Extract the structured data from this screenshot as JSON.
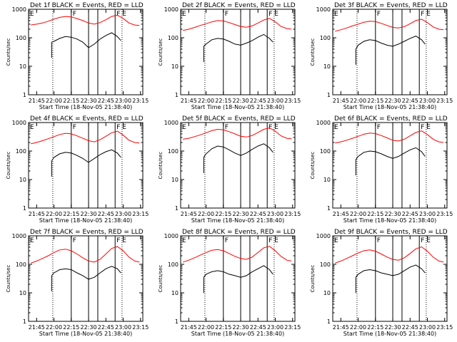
{
  "chart_data": {
    "type": "line",
    "layout": "3x3 grid",
    "xlabel": "Start Time (18-Nov-05 21:38:40)",
    "ylabel": "Counts/sec",
    "x_ticks": [
      "21:45",
      "22:00",
      "22:15",
      "22:30",
      "22:45",
      "23:00",
      "23:15"
    ],
    "x_range": [
      "21:38",
      "23:17"
    ],
    "y_scale": "log",
    "y_range": [
      1,
      1000
    ],
    "y_ticks": [
      "1",
      "10",
      "100",
      "1000"
    ],
    "colors": {
      "events": "#000000",
      "lld": "#ff0000",
      "axes": "#000000",
      "background": "#ffffff"
    },
    "markers": {
      "labels": [
        "F",
        "F",
        "E"
      ],
      "solid_times": [
        "22:15",
        "22:30",
        "22:38",
        "22:53"
      ],
      "dotted_times": [
        "21:59",
        "22:59"
      ]
    },
    "panels": [
      {
        "title": "Det 1f BLACK = Events, RED = LLD",
        "series": [
          {
            "name": "Events",
            "color": "#000000",
            "x": [
              "21:58",
              "22:00",
              "22:05",
              "22:10",
              "22:15",
              "22:20",
              "22:25",
              "22:30",
              "22:35",
              "22:40",
              "22:45",
              "22:50",
              "22:55",
              "22:58"
            ],
            "values": [
              70,
              75,
              95,
              110,
              105,
              90,
              70,
              45,
              60,
              90,
              120,
              150,
              110,
              80
            ]
          },
          {
            "name": "LLD",
            "color": "#ff0000",
            "x": [
              "21:40",
              "21:45",
              "21:50",
              "21:55",
              "22:00",
              "22:05",
              "22:10",
              "22:15",
              "22:20",
              "22:25",
              "22:30",
              "22:35",
              "22:40",
              "22:45",
              "22:50",
              "22:55",
              "23:00",
              "23:05",
              "23:10",
              "23:14"
            ],
            "values": [
              280,
              300,
              330,
              380,
              450,
              520,
              560,
              540,
              470,
              400,
              330,
              300,
              340,
              430,
              560,
              620,
              480,
              330,
              280,
              270
            ]
          }
        ]
      },
      {
        "title": "Det 2f BLACK = Events, RED = LLD",
        "series": [
          {
            "name": "Events",
            "color": "#000000",
            "x": [
              "21:58",
              "22:00",
              "22:05",
              "22:10",
              "22:15",
              "22:20",
              "22:25",
              "22:30",
              "22:35",
              "22:40",
              "22:45",
              "22:50",
              "22:55",
              "22:58"
            ],
            "values": [
              50,
              60,
              85,
              95,
              90,
              75,
              60,
              55,
              65,
              80,
              105,
              130,
              95,
              70
            ]
          },
          {
            "name": "LLD",
            "color": "#ff0000",
            "x": [
              "21:40",
              "21:45",
              "21:50",
              "21:55",
              "22:00",
              "22:05",
              "22:10",
              "22:15",
              "22:20",
              "22:25",
              "22:30",
              "22:35",
              "22:40",
              "22:45",
              "22:50",
              "22:55",
              "23:00",
              "23:05",
              "23:10",
              "23:14"
            ],
            "values": [
              180,
              200,
              230,
              270,
              310,
              360,
              400,
              390,
              340,
              290,
              250,
              235,
              260,
              330,
              420,
              480,
              360,
              250,
              210,
              200
            ]
          }
        ]
      },
      {
        "title": "Det 3f BLACK = Events, RED = LLD",
        "series": [
          {
            "name": "Events",
            "color": "#000000",
            "x": [
              "21:58",
              "22:00",
              "22:05",
              "22:10",
              "22:15",
              "22:20",
              "22:25",
              "22:30",
              "22:35",
              "22:40",
              "22:45",
              "22:50",
              "22:55",
              "22:58"
            ],
            "values": [
              40,
              55,
              75,
              85,
              80,
              65,
              55,
              50,
              60,
              75,
              95,
              115,
              85,
              60
            ]
          },
          {
            "name": "LLD",
            "color": "#ff0000",
            "x": [
              "21:40",
              "21:45",
              "21:50",
              "21:55",
              "22:00",
              "22:05",
              "22:10",
              "22:15",
              "22:20",
              "22:25",
              "22:30",
              "22:35",
              "22:40",
              "22:45",
              "22:50",
              "22:55",
              "23:00",
              "23:05",
              "23:10",
              "23:14"
            ],
            "values": [
              170,
              190,
              220,
              260,
              300,
              350,
              380,
              370,
              320,
              270,
              230,
              220,
              245,
              310,
              400,
              450,
              340,
              240,
              200,
              190
            ]
          }
        ]
      },
      {
        "title": "Det 4f BLACK = Events, RED = LLD",
        "series": [
          {
            "name": "Events",
            "color": "#000000",
            "x": [
              "21:58",
              "22:00",
              "22:05",
              "22:10",
              "22:15",
              "22:20",
              "22:25",
              "22:30",
              "22:35",
              "22:40",
              "22:45",
              "22:50",
              "22:55",
              "22:58"
            ],
            "values": [
              45,
              60,
              80,
              90,
              85,
              70,
              55,
              40,
              55,
              75,
              95,
              110,
              85,
              60
            ]
          },
          {
            "name": "LLD",
            "color": "#ff0000",
            "x": [
              "21:40",
              "21:45",
              "21:50",
              "21:55",
              "22:00",
              "22:05",
              "22:10",
              "22:15",
              "22:20",
              "22:25",
              "22:30",
              "22:35",
              "22:40",
              "22:45",
              "22:50",
              "22:55",
              "23:00",
              "23:05",
              "23:10",
              "23:14"
            ],
            "values": [
              180,
              200,
              230,
              270,
              320,
              380,
              420,
              400,
              340,
              280,
              230,
              210,
              250,
              330,
              440,
              500,
              360,
              240,
              200,
              190
            ]
          }
        ]
      },
      {
        "title": "Det 5f BLACK = Events, RED = LLD",
        "series": [
          {
            "name": "Events",
            "color": "#000000",
            "x": [
              "21:58",
              "22:00",
              "22:05",
              "22:10",
              "22:15",
              "22:20",
              "22:25",
              "22:30",
              "22:35",
              "22:40",
              "22:45",
              "22:50",
              "22:55",
              "22:58"
            ],
            "values": [
              60,
              80,
              120,
              150,
              140,
              110,
              85,
              70,
              85,
              115,
              150,
              180,
              130,
              90
            ]
          },
          {
            "name": "LLD",
            "color": "#ff0000",
            "x": [
              "21:40",
              "21:45",
              "21:50",
              "21:55",
              "22:00",
              "22:05",
              "22:10",
              "22:15",
              "22:20",
              "22:25",
              "22:30",
              "22:35",
              "22:40",
              "22:45",
              "22:50",
              "22:55",
              "23:00",
              "23:05",
              "23:10",
              "23:14"
            ],
            "values": [
              260,
              280,
              320,
              370,
              440,
              520,
              580,
              560,
              480,
              400,
              330,
              310,
              350,
              450,
              580,
              650,
              500,
              340,
              280,
              270
            ]
          }
        ]
      },
      {
        "title": "Det 6f BLACK = Events, RED = LLD",
        "series": [
          {
            "name": "Events",
            "color": "#000000",
            "x": [
              "21:58",
              "22:00",
              "22:05",
              "22:10",
              "22:15",
              "22:20",
              "22:25",
              "22:30",
              "22:35",
              "22:40",
              "22:45",
              "22:50",
              "22:55",
              "22:58"
            ],
            "values": [
              50,
              65,
              90,
              100,
              95,
              80,
              65,
              55,
              65,
              85,
              110,
              130,
              95,
              65
            ]
          },
          {
            "name": "LLD",
            "color": "#ff0000",
            "x": [
              "21:40",
              "21:45",
              "21:50",
              "21:55",
              "22:00",
              "22:05",
              "22:10",
              "22:15",
              "22:20",
              "22:25",
              "22:30",
              "22:35",
              "22:40",
              "22:45",
              "22:50",
              "22:55",
              "23:00",
              "23:05",
              "23:10",
              "23:14"
            ],
            "values": [
              190,
              210,
              240,
              280,
              330,
              390,
              430,
              410,
              350,
              290,
              240,
              225,
              260,
              340,
              450,
              510,
              380,
              260,
              210,
              200
            ]
          }
        ]
      },
      {
        "title": "Det 7f BLACK = Events, RED = LLD",
        "series": [
          {
            "name": "Events",
            "color": "#000000",
            "x": [
              "21:58",
              "22:00",
              "22:05",
              "22:10",
              "22:15",
              "22:20",
              "22:25",
              "22:30",
              "22:35",
              "22:40",
              "22:45",
              "22:50",
              "22:55",
              "22:58"
            ],
            "values": [
              40,
              50,
              65,
              70,
              65,
              50,
              40,
              30,
              35,
              50,
              70,
              85,
              70,
              50
            ]
          },
          {
            "name": "LLD",
            "color": "#ff0000",
            "x": [
              "21:40",
              "21:45",
              "21:50",
              "21:55",
              "22:00",
              "22:05",
              "22:10",
              "22:15",
              "22:20",
              "22:25",
              "22:30",
              "22:35",
              "22:40",
              "22:45",
              "22:50",
              "22:55",
              "23:00",
              "23:05",
              "23:10",
              "23:14"
            ],
            "values": [
              110,
              130,
              160,
              200,
              260,
              320,
              340,
              300,
              230,
              170,
              130,
              120,
              150,
              230,
              360,
              420,
              300,
              180,
              130,
              120
            ]
          }
        ]
      },
      {
        "title": "Det 8f BLACK = Events, RED = LLD",
        "series": [
          {
            "name": "Events",
            "color": "#000000",
            "x": [
              "21:58",
              "22:00",
              "22:05",
              "22:10",
              "22:15",
              "22:20",
              "22:25",
              "22:30",
              "22:35",
              "22:40",
              "22:45",
              "22:50",
              "22:55",
              "22:58"
            ],
            "values": [
              35,
              45,
              55,
              60,
              55,
              45,
              40,
              35,
              40,
              55,
              70,
              90,
              65,
              45
            ]
          },
          {
            "name": "LLD",
            "color": "#ff0000",
            "x": [
              "21:40",
              "21:45",
              "21:50",
              "21:55",
              "22:00",
              "22:05",
              "22:10",
              "22:15",
              "22:20",
              "22:25",
              "22:30",
              "22:35",
              "22:40",
              "22:45",
              "22:50",
              "22:55",
              "23:00",
              "23:05",
              "23:10",
              "23:14"
            ],
            "values": [
              120,
              140,
              170,
              210,
              260,
              310,
              330,
              300,
              240,
              190,
              160,
              150,
              180,
              260,
              380,
              430,
              300,
              190,
              140,
              130
            ]
          }
        ]
      },
      {
        "title": "Det 9f BLACK = Events, RED = LLD",
        "series": [
          {
            "name": "Events",
            "color": "#000000",
            "x": [
              "21:58",
              "22:00",
              "22:05",
              "22:10",
              "22:15",
              "22:20",
              "22:25",
              "22:30",
              "22:35",
              "22:40",
              "22:45",
              "22:50",
              "22:55",
              "22:58"
            ],
            "values": [
              35,
              45,
              60,
              65,
              60,
              50,
              45,
              40,
              45,
              60,
              80,
              95,
              70,
              50
            ]
          },
          {
            "name": "LLD",
            "color": "#ff0000",
            "x": [
              "21:40",
              "21:45",
              "21:50",
              "21:55",
              "22:00",
              "22:05",
              "22:10",
              "22:15",
              "22:20",
              "22:25",
              "22:30",
              "22:35",
              "22:40",
              "22:45",
              "22:50",
              "22:55",
              "23:00",
              "23:05",
              "23:10",
              "23:14"
            ],
            "values": [
              110,
              130,
              160,
              200,
              250,
              300,
              320,
              290,
              230,
              180,
              150,
              140,
              170,
              240,
              350,
              410,
              290,
              180,
              130,
              120
            ]
          }
        ]
      }
    ]
  }
}
